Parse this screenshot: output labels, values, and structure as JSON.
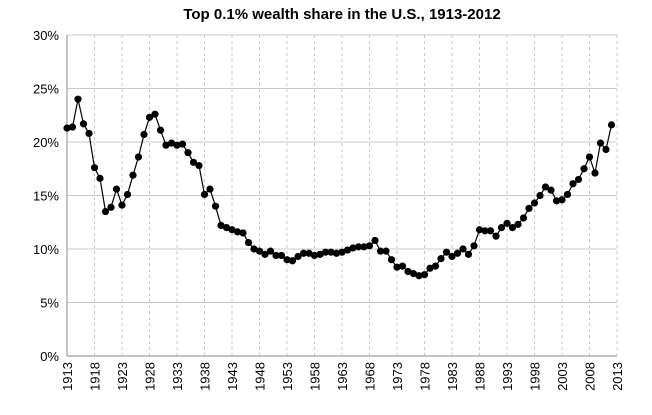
{
  "chart_data": {
    "type": "line",
    "title": "Top 0.1% wealth share in the U.S., 1913-2012",
    "x": [
      1913,
      1914,
      1915,
      1916,
      1917,
      1918,
      1919,
      1920,
      1921,
      1922,
      1923,
      1924,
      1925,
      1926,
      1927,
      1928,
      1929,
      1930,
      1931,
      1932,
      1933,
      1934,
      1935,
      1936,
      1937,
      1938,
      1939,
      1940,
      1941,
      1942,
      1943,
      1944,
      1945,
      1946,
      1947,
      1948,
      1949,
      1950,
      1951,
      1952,
      1953,
      1954,
      1955,
      1956,
      1957,
      1958,
      1959,
      1960,
      1961,
      1962,
      1963,
      1964,
      1965,
      1966,
      1967,
      1968,
      1969,
      1970,
      1971,
      1972,
      1973,
      1974,
      1975,
      1976,
      1977,
      1978,
      1979,
      1980,
      1981,
      1982,
      1983,
      1984,
      1985,
      1986,
      1987,
      1988,
      1989,
      1990,
      1991,
      1992,
      1993,
      1994,
      1995,
      1996,
      1997,
      1998,
      1999,
      2000,
      2001,
      2002,
      2003,
      2004,
      2005,
      2006,
      2007,
      2008,
      2009,
      2010,
      2011,
      2012
    ],
    "values": [
      21.3,
      21.4,
      24.0,
      21.7,
      20.8,
      17.6,
      16.6,
      13.5,
      13.9,
      15.6,
      14.1,
      15.1,
      16.9,
      18.6,
      20.7,
      22.3,
      22.6,
      21.1,
      19.7,
      19.9,
      19.7,
      19.8,
      19.0,
      18.1,
      17.8,
      15.1,
      15.6,
      14.0,
      12.2,
      12.0,
      11.8,
      11.6,
      11.5,
      10.6,
      10.0,
      9.8,
      9.5,
      9.8,
      9.4,
      9.4,
      9.0,
      8.9,
      9.3,
      9.6,
      9.6,
      9.4,
      9.5,
      9.7,
      9.7,
      9.6,
      9.7,
      9.9,
      10.1,
      10.2,
      10.2,
      10.3,
      10.8,
      9.8,
      9.8,
      9.0,
      8.3,
      8.4,
      7.9,
      7.7,
      7.5,
      7.6,
      8.2,
      8.4,
      9.1,
      9.7,
      9.3,
      9.6,
      10.0,
      9.5,
      10.3,
      11.8,
      11.7,
      11.7,
      11.2,
      12.0,
      12.4,
      12.0,
      12.3,
      12.9,
      13.8,
      14.3,
      15.0,
      15.8,
      15.5,
      14.5,
      14.6,
      15.1,
      16.1,
      16.5,
      17.5,
      18.6,
      17.1,
      19.9,
      19.3,
      21.6
    ],
    "color": "#000000",
    "xlim": [
      1913,
      2013
    ],
    "xticks": [
      1913,
      1918,
      1923,
      1928,
      1933,
      1938,
      1943,
      1948,
      1953,
      1958,
      1963,
      1968,
      1973,
      1978,
      1983,
      1988,
      1993,
      1998,
      2003,
      2008,
      2013
    ],
    "ylim": [
      0,
      30
    ],
    "yticks": [
      {
        "value": 0,
        "label": "0%"
      },
      {
        "value": 5,
        "label": "5%"
      },
      {
        "value": 10,
        "label": "10%"
      },
      {
        "value": 15,
        "label": "15%"
      },
      {
        "value": 20,
        "label": "20%"
      },
      {
        "value": 25,
        "label": "25%"
      },
      {
        "value": 30,
        "label": "30%"
      }
    ],
    "grid": true
  }
}
